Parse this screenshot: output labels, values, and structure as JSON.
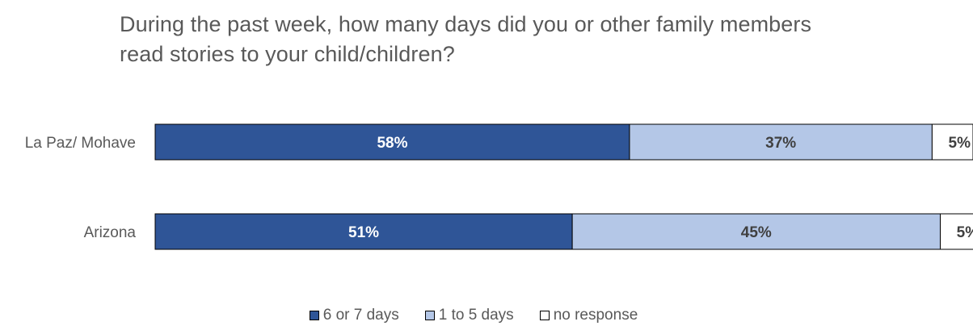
{
  "chart_data": {
    "type": "bar",
    "orientation": "horizontal",
    "stacked": true,
    "percent_stacked": true,
    "title": "During the past week, how many days did you or other family members\nread stories to your child/children?",
    "categories": [
      "La Paz/ Mohave",
      "Arizona"
    ],
    "series": [
      {
        "name": "6 or 7 days",
        "values": [
          58,
          51
        ],
        "labels": [
          "58%",
          "51%"
        ],
        "color": "#2f5597"
      },
      {
        "name": "1 to 5 days",
        "values": [
          37,
          45
        ],
        "labels": [
          "37%",
          "45%"
        ],
        "color": "#b4c7e7"
      },
      {
        "name": "no response",
        "values": [
          5,
          5
        ],
        "labels": [
          "5%",
          "5%"
        ],
        "color": "#ffffff"
      }
    ],
    "xlim": [
      0,
      100
    ],
    "grid": false,
    "legend_position": "bottom"
  }
}
